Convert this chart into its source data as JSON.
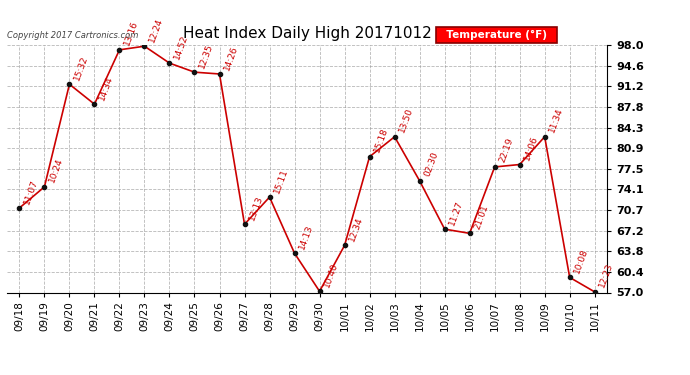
{
  "title": "Heat Index Daily High 20171012",
  "copyright_text": "Copyright 2017 Cartronics.com",
  "legend_label": "Temperature (°F)",
  "x_labels": [
    "09/18",
    "09/19",
    "09/20",
    "09/21",
    "09/22",
    "09/23",
    "09/24",
    "09/25",
    "09/26",
    "09/27",
    "09/28",
    "09/29",
    "09/30",
    "10/01",
    "10/02",
    "10/03",
    "10/04",
    "10/05",
    "10/06",
    "10/07",
    "10/08",
    "10/09",
    "10/10",
    "10/11"
  ],
  "y_values": [
    71.0,
    74.5,
    91.5,
    88.2,
    97.2,
    97.8,
    95.0,
    93.5,
    93.2,
    68.3,
    72.8,
    63.5,
    57.2,
    64.8,
    79.5,
    82.8,
    75.5,
    67.5,
    66.8,
    77.8,
    78.2,
    82.8,
    59.5,
    57.1
  ],
  "point_labels": [
    "11:07",
    "10:24",
    "15:32",
    "14:34",
    "13:16",
    "12:24",
    "14:52",
    "12:35",
    "14:26",
    "13:13",
    "15:11",
    "14:13",
    "10:40",
    "12:34",
    "15:18",
    "13:50",
    "02:30",
    "11:27",
    "21:01",
    "22:19",
    "14:06",
    "11:34",
    "10:08",
    "12:23"
  ],
  "line_color": "#cc0000",
  "marker_color": "#111111",
  "label_color": "#cc0000",
  "background_color": "#ffffff",
  "grid_color": "#999999",
  "ylim": [
    57.0,
    98.0
  ],
  "yticks": [
    57.0,
    60.4,
    63.8,
    67.2,
    70.7,
    74.1,
    77.5,
    80.9,
    84.3,
    87.8,
    91.2,
    94.6,
    98.0
  ],
  "figsize": [
    6.9,
    3.75
  ],
  "dpi": 100
}
